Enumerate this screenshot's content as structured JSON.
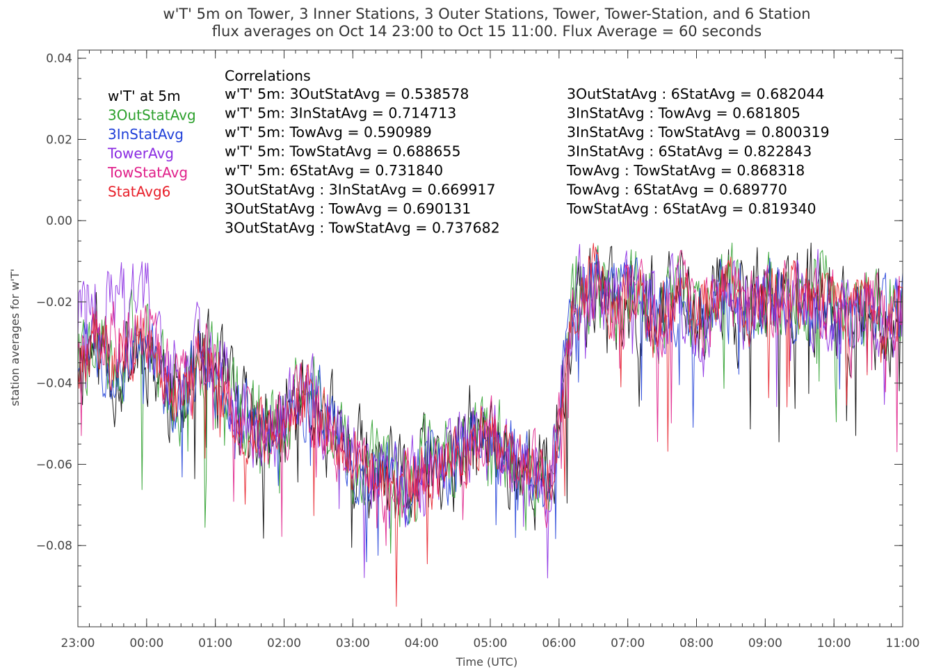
{
  "chart_data": {
    "type": "line",
    "title": "w'T' 5m on Tower, 3 Inner Stations, 3 Outer Stations, Tower, Tower-Station, and 6 Station",
    "subtitle": "flux averages on Oct 14 23:00 to Oct 15 11:00. Flux Average = 60 seconds",
    "xlabel": "Time (UTC)",
    "ylabel": "station averages for w'T'",
    "xlim": [
      0,
      12
    ],
    "ylim": [
      -0.1,
      0.042
    ],
    "x_ticks": [
      0,
      1,
      2,
      3,
      4,
      5,
      6,
      7,
      8,
      9,
      10,
      11,
      12
    ],
    "x_tick_labels": [
      "23:00",
      "00:00",
      "01:00",
      "02:00",
      "03:00",
      "04:00",
      "05:00",
      "06:00",
      "07:00",
      "08:00",
      "09:00",
      "10:00",
      "11:00"
    ],
    "y_ticks": [
      0.04,
      0.02,
      0.0,
      -0.02,
      -0.04,
      -0.06,
      -0.08
    ],
    "y_tick_labels": [
      "0.04",
      "0.02",
      "0.00",
      "−0.02",
      "−0.04",
      "−0.06",
      "−0.08"
    ],
    "grid": false,
    "legend_position": "top-left",
    "series": [
      {
        "name": "w'T' at 5m",
        "color": "#000000",
        "offset": 0,
        "noise": 0.011,
        "seed": 11,
        "x": [
          0,
          0.25,
          0.5,
          0.75,
          1,
          1.25,
          1.5,
          1.75,
          2,
          2.25,
          2.5,
          2.75,
          3,
          3.25,
          3.5,
          3.75,
          4,
          4.25,
          4.5,
          4.75,
          5,
          5.25,
          5.5,
          5.75,
          6,
          6.25,
          6.5,
          6.65,
          6.8,
          6.95,
          7.2,
          7.5,
          7.75,
          8,
          8.25,
          8.5,
          8.75,
          9,
          9.25,
          9.5,
          9.75,
          10,
          10.25,
          10.5,
          10.75,
          11,
          11.25,
          11.5,
          11.75,
          12
        ],
        "y": [
          -0.034,
          -0.03,
          -0.036,
          -0.033,
          -0.03,
          -0.04,
          -0.045,
          -0.034,
          -0.038,
          -0.046,
          -0.052,
          -0.052,
          -0.05,
          -0.045,
          -0.046,
          -0.054,
          -0.06,
          -0.063,
          -0.066,
          -0.066,
          -0.063,
          -0.062,
          -0.06,
          -0.054,
          -0.055,
          -0.058,
          -0.06,
          -0.062,
          -0.065,
          -0.058,
          -0.02,
          -0.016,
          -0.022,
          -0.018,
          -0.02,
          -0.024,
          -0.018,
          -0.025,
          -0.02,
          -0.018,
          -0.022,
          -0.02,
          -0.016,
          -0.02,
          -0.018,
          -0.022,
          -0.024,
          -0.02,
          -0.025,
          -0.022
        ]
      },
      {
        "name": "3OutStatAvg",
        "color": "#2ca02c",
        "offset": 0.001,
        "noise": 0.009,
        "seed": 22,
        "x": [
          0,
          0.25,
          0.5,
          0.75,
          1,
          1.25,
          1.5,
          1.75,
          2,
          2.25,
          2.5,
          2.75,
          3,
          3.25,
          3.5,
          3.75,
          4,
          4.25,
          4.5,
          4.75,
          5,
          5.25,
          5.5,
          5.75,
          6,
          6.25,
          6.5,
          6.65,
          6.8,
          6.95,
          7.2,
          7.5,
          7.75,
          8,
          8.25,
          8.5,
          8.75,
          9,
          9.25,
          9.5,
          9.75,
          10,
          10.25,
          10.5,
          10.75,
          11,
          11.25,
          11.5,
          11.75,
          12
        ],
        "y": [
          -0.034,
          -0.03,
          -0.036,
          -0.033,
          -0.03,
          -0.04,
          -0.045,
          -0.034,
          -0.038,
          -0.046,
          -0.052,
          -0.052,
          -0.05,
          -0.045,
          -0.046,
          -0.054,
          -0.06,
          -0.063,
          -0.066,
          -0.066,
          -0.063,
          -0.062,
          -0.06,
          -0.054,
          -0.055,
          -0.058,
          -0.06,
          -0.062,
          -0.065,
          -0.058,
          -0.02,
          -0.016,
          -0.022,
          -0.018,
          -0.02,
          -0.024,
          -0.018,
          -0.025,
          -0.02,
          -0.018,
          -0.022,
          -0.02,
          -0.016,
          -0.02,
          -0.018,
          -0.022,
          -0.024,
          -0.02,
          -0.025,
          -0.022
        ]
      },
      {
        "name": "3InStatAvg",
        "color": "#1f3fd8",
        "offset": 0.0005,
        "noise": 0.008,
        "seed": 33,
        "x": [
          0,
          0.25,
          0.5,
          0.75,
          1,
          1.25,
          1.5,
          1.75,
          2,
          2.25,
          2.5,
          2.75,
          3,
          3.25,
          3.5,
          3.75,
          4,
          4.25,
          4.5,
          4.75,
          5,
          5.25,
          5.5,
          5.75,
          6,
          6.25,
          6.5,
          6.65,
          6.8,
          6.95,
          7.2,
          7.5,
          7.75,
          8,
          8.25,
          8.5,
          8.75,
          9,
          9.25,
          9.5,
          9.75,
          10,
          10.25,
          10.5,
          10.75,
          11,
          11.25,
          11.5,
          11.75,
          12
        ],
        "y": [
          -0.034,
          -0.03,
          -0.036,
          -0.033,
          -0.03,
          -0.04,
          -0.045,
          -0.034,
          -0.038,
          -0.046,
          -0.052,
          -0.052,
          -0.05,
          -0.045,
          -0.046,
          -0.054,
          -0.06,
          -0.063,
          -0.066,
          -0.066,
          -0.063,
          -0.062,
          -0.06,
          -0.054,
          -0.055,
          -0.058,
          -0.06,
          -0.062,
          -0.065,
          -0.058,
          -0.02,
          -0.016,
          -0.022,
          -0.018,
          -0.02,
          -0.024,
          -0.018,
          -0.025,
          -0.02,
          -0.018,
          -0.022,
          -0.02,
          -0.016,
          -0.02,
          -0.018,
          -0.022,
          -0.024,
          -0.02,
          -0.025,
          -0.022
        ]
      },
      {
        "name": "TowerAvg",
        "color": "#8a2be2",
        "offset": 0,
        "noise": 0.009,
        "seed": 44,
        "x": [
          0,
          0.25,
          0.5,
          0.75,
          1,
          1.25,
          1.5,
          1.75,
          2,
          2.25,
          2.5,
          2.75,
          3,
          3.25,
          3.5,
          3.75,
          4,
          4.25,
          4.5,
          4.75,
          5,
          5.25,
          5.5,
          5.75,
          6,
          6.25,
          6.5,
          6.65,
          6.8,
          6.95,
          7.2,
          7.5,
          7.75,
          8,
          8.25,
          8.5,
          8.75,
          9,
          9.25,
          9.5,
          9.75,
          10,
          10.25,
          10.5,
          10.75,
          11,
          11.25,
          11.5,
          11.75,
          12
        ],
        "y": [
          -0.024,
          -0.02,
          -0.02,
          -0.022,
          -0.02,
          -0.036,
          -0.042,
          -0.032,
          -0.036,
          -0.044,
          -0.05,
          -0.05,
          -0.048,
          -0.044,
          -0.046,
          -0.054,
          -0.06,
          -0.064,
          -0.066,
          -0.066,
          -0.062,
          -0.06,
          -0.058,
          -0.052,
          -0.055,
          -0.058,
          -0.06,
          -0.062,
          -0.066,
          -0.058,
          -0.02,
          -0.016,
          -0.022,
          -0.018,
          -0.02,
          -0.024,
          -0.018,
          -0.025,
          -0.02,
          -0.018,
          -0.022,
          -0.02,
          -0.016,
          -0.02,
          -0.018,
          -0.022,
          -0.024,
          -0.02,
          -0.025,
          -0.022
        ]
      },
      {
        "name": "TowStatAvg",
        "color": "#e0208a",
        "offset": 0,
        "noise": 0.008,
        "seed": 55,
        "x": [
          0,
          0.25,
          0.5,
          0.75,
          1,
          1.25,
          1.5,
          1.75,
          2,
          2.25,
          2.5,
          2.75,
          3,
          3.25,
          3.5,
          3.75,
          4,
          4.25,
          4.5,
          4.75,
          5,
          5.25,
          5.5,
          5.75,
          6,
          6.25,
          6.5,
          6.65,
          6.8,
          6.95,
          7.2,
          7.5,
          7.75,
          8,
          8.25,
          8.5,
          8.75,
          9,
          9.25,
          9.5,
          9.75,
          10,
          10.25,
          10.5,
          10.75,
          11,
          11.25,
          11.5,
          11.75,
          12
        ],
        "y": [
          -0.028,
          -0.025,
          -0.03,
          -0.028,
          -0.026,
          -0.038,
          -0.044,
          -0.033,
          -0.037,
          -0.045,
          -0.051,
          -0.051,
          -0.049,
          -0.044,
          -0.046,
          -0.054,
          -0.06,
          -0.063,
          -0.066,
          -0.066,
          -0.062,
          -0.061,
          -0.059,
          -0.053,
          -0.055,
          -0.058,
          -0.06,
          -0.062,
          -0.065,
          -0.058,
          -0.02,
          -0.016,
          -0.022,
          -0.018,
          -0.02,
          -0.024,
          -0.018,
          -0.025,
          -0.02,
          -0.018,
          -0.022,
          -0.02,
          -0.016,
          -0.02,
          -0.018,
          -0.022,
          -0.024,
          -0.02,
          -0.025,
          -0.022
        ]
      },
      {
        "name": "StatAvg6",
        "color": "#e8202a",
        "offset": 0.0008,
        "noise": 0.007,
        "seed": 66,
        "x": [
          0,
          0.25,
          0.5,
          0.75,
          1,
          1.25,
          1.5,
          1.75,
          2,
          2.25,
          2.5,
          2.75,
          3,
          3.25,
          3.5,
          3.75,
          4,
          4.25,
          4.5,
          4.75,
          5,
          5.25,
          5.5,
          5.75,
          6,
          6.25,
          6.5,
          6.65,
          6.8,
          6.95,
          7.2,
          7.5,
          7.75,
          8,
          8.25,
          8.5,
          8.75,
          9,
          9.25,
          9.5,
          9.75,
          10,
          10.25,
          10.5,
          10.75,
          11,
          11.25,
          11.5,
          11.75,
          12
        ],
        "y": [
          -0.034,
          -0.03,
          -0.036,
          -0.033,
          -0.03,
          -0.04,
          -0.045,
          -0.034,
          -0.038,
          -0.046,
          -0.052,
          -0.052,
          -0.05,
          -0.045,
          -0.046,
          -0.054,
          -0.06,
          -0.063,
          -0.066,
          -0.066,
          -0.063,
          -0.062,
          -0.06,
          -0.054,
          -0.055,
          -0.058,
          -0.06,
          -0.062,
          -0.065,
          -0.058,
          -0.02,
          -0.016,
          -0.022,
          -0.018,
          -0.02,
          -0.024,
          -0.018,
          -0.025,
          -0.02,
          -0.018,
          -0.022,
          -0.02,
          -0.016,
          -0.02,
          -0.018,
          -0.022,
          -0.024,
          -0.02,
          -0.025,
          -0.022
        ]
      }
    ],
    "annotations": {
      "heading": "Correlations",
      "col1": [
        "w'T' 5m: 3OutStatAvg = 0.538578",
        "w'T' 5m: 3InStatAvg = 0.714713",
        "w'T' 5m: TowAvg = 0.590989",
        "w'T' 5m: TowStatAvg = 0.688655",
        "w'T' 5m: 6StatAvg = 0.731840",
        "3OutStatAvg : 3InStatAvg = 0.669917",
        "3OutStatAvg : TowAvg = 0.690131",
        "3OutStatAvg : TowStatAvg = 0.737682"
      ],
      "col2": [
        "3OutStatAvg : 6StatAvg = 0.682044",
        "3InStatAvg : TowAvg = 0.681805",
        "3InStatAvg : TowStatAvg = 0.800319",
        "3InStatAvg : 6StatAvg = 0.822843",
        "TowAvg : TowStatAvg = 0.868318",
        "TowAvg : 6StatAvg = 0.689770",
        "TowStatAvg : 6StatAvg = 0.819340"
      ]
    }
  }
}
